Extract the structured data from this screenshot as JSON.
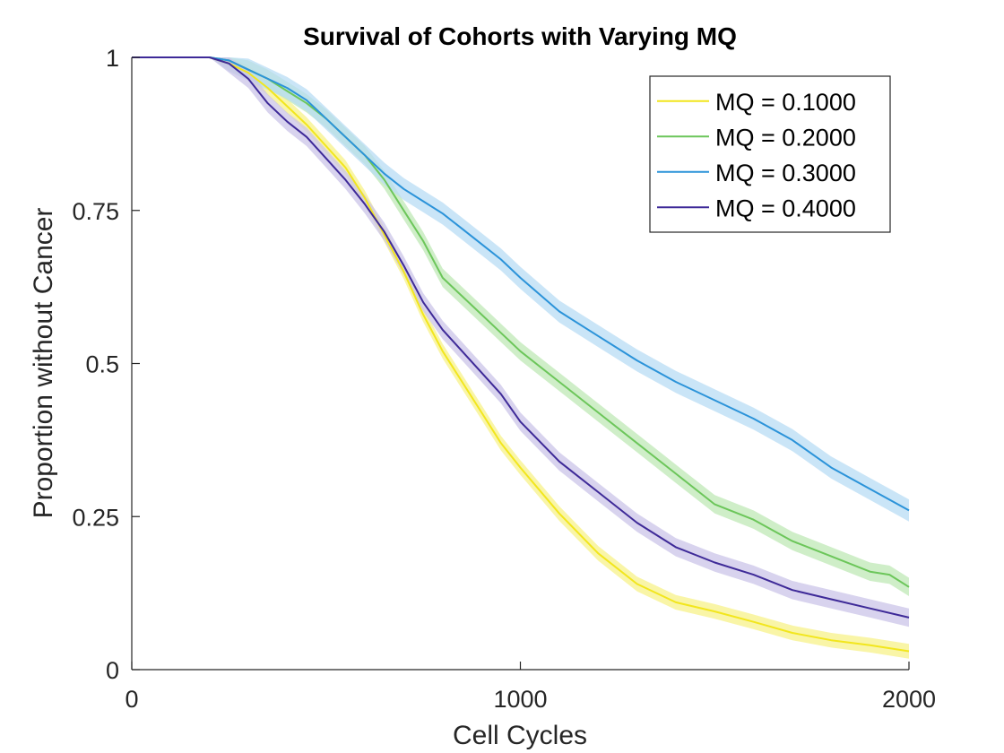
{
  "chart_data": {
    "type": "line",
    "title": "Survival of Cohorts with Varying MQ",
    "xlabel": "Cell Cycles",
    "ylabel": "Proportion without Cancer",
    "xlim": [
      0,
      2000
    ],
    "ylim": [
      0,
      1
    ],
    "x_ticks": [
      0,
      1000,
      2000
    ],
    "x_tick_labels": [
      "0",
      "1000",
      "2000"
    ],
    "y_ticks": [
      0,
      0.25,
      0.5,
      0.75,
      1
    ],
    "y_tick_labels": [
      "0",
      "0.25",
      "0.5",
      "0.75",
      "1"
    ],
    "grid": false,
    "legend_position": "top-right",
    "series": [
      {
        "name": "MQ = 0.1000",
        "color": "#f2e61d",
        "band_color": "#f7f28a",
        "x": [
          0,
          120,
          200,
          250,
          300,
          350,
          400,
          450,
          500,
          550,
          600,
          650,
          700,
          750,
          800,
          850,
          900,
          950,
          1000,
          1100,
          1200,
          1300,
          1400,
          1500,
          1600,
          1700,
          1800,
          1900,
          2000
        ],
        "y": [
          1,
          1,
          1,
          0.99,
          0.975,
          0.95,
          0.92,
          0.89,
          0.855,
          0.82,
          0.77,
          0.71,
          0.65,
          0.58,
          0.52,
          0.47,
          0.42,
          0.37,
          0.33,
          0.255,
          0.19,
          0.14,
          0.11,
          0.095,
          0.078,
          0.06,
          0.048,
          0.04,
          0.03
        ],
        "band": 0.012
      },
      {
        "name": "MQ = 0.2000",
        "color": "#6cc65a",
        "band_color": "#bfe8b6",
        "x": [
          0,
          120,
          200,
          250,
          300,
          350,
          400,
          450,
          500,
          550,
          600,
          650,
          700,
          750,
          800,
          850,
          900,
          950,
          1000,
          1100,
          1200,
          1300,
          1400,
          1500,
          1600,
          1700,
          1800,
          1900,
          1950,
          2000
        ],
        "y": [
          1,
          1,
          1,
          0.995,
          0.98,
          0.965,
          0.945,
          0.925,
          0.9,
          0.87,
          0.84,
          0.8,
          0.75,
          0.7,
          0.64,
          0.61,
          0.58,
          0.55,
          0.52,
          0.47,
          0.42,
          0.37,
          0.32,
          0.27,
          0.245,
          0.21,
          0.185,
          0.16,
          0.155,
          0.135
        ],
        "band": 0.015
      },
      {
        "name": "MQ = 0.3000",
        "color": "#2b93d9",
        "band_color": "#b8dcf4",
        "x": [
          0,
          120,
          200,
          250,
          300,
          350,
          400,
          450,
          500,
          550,
          600,
          650,
          700,
          750,
          800,
          850,
          900,
          950,
          1000,
          1100,
          1200,
          1300,
          1400,
          1500,
          1600,
          1700,
          1800,
          1900,
          2000
        ],
        "y": [
          1,
          1,
          1,
          0.995,
          0.98,
          0.965,
          0.95,
          0.93,
          0.9,
          0.87,
          0.84,
          0.81,
          0.785,
          0.765,
          0.745,
          0.72,
          0.695,
          0.67,
          0.64,
          0.585,
          0.545,
          0.505,
          0.47,
          0.44,
          0.41,
          0.375,
          0.33,
          0.295,
          0.26
        ],
        "band": 0.018
      },
      {
        "name": "MQ = 0.4000",
        "color": "#3e2a98",
        "band_color": "#cbc4e8",
        "x": [
          0,
          120,
          200,
          250,
          300,
          350,
          400,
          450,
          500,
          550,
          600,
          650,
          700,
          750,
          800,
          850,
          900,
          950,
          1000,
          1100,
          1200,
          1300,
          1400,
          1500,
          1600,
          1700,
          1800,
          1900,
          2000
        ],
        "y": [
          1,
          1,
          1,
          0.99,
          0.965,
          0.925,
          0.895,
          0.87,
          0.835,
          0.8,
          0.76,
          0.715,
          0.66,
          0.6,
          0.555,
          0.52,
          0.485,
          0.45,
          0.405,
          0.34,
          0.29,
          0.24,
          0.2,
          0.175,
          0.155,
          0.13,
          0.115,
          0.1,
          0.085
        ],
        "band": 0.015
      }
    ]
  }
}
